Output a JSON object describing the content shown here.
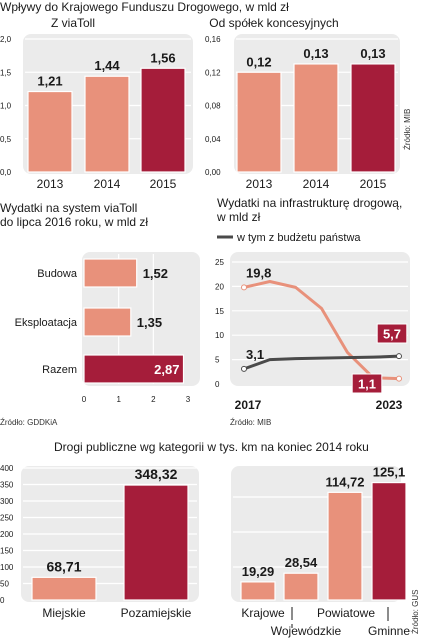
{
  "colors": {
    "panel": "#ebebeb",
    "grid": "#ffffff",
    "bar_light": "#e8917b",
    "bar_dark": "#a51d3a",
    "line_dark": "#4a4a4a",
    "text": "#1a1a1a"
  },
  "header": {
    "title": "Wpływy do Krajowego Funduszu Drogowego, w mld zł"
  },
  "section2": {
    "title_line1": "Wydatki na system viaToll",
    "title_line2": "do lipca 2016 roku, w mld zł"
  },
  "section3": {
    "title_line1": "Wydatki na infrastrukturę drogową,",
    "title_line2": "w mld zł"
  },
  "section4": {
    "title": "Drogi publiczne wg kategorii w tys. km na koniec 2014 roku"
  },
  "sources": {
    "top": "Źródło: MIB",
    "viatoll": "Źródło: GDDKiA",
    "infra": "Źródło: MIB",
    "roads": "Źródło: GUS"
  },
  "chart_data": [
    {
      "type": "bar",
      "title": "Z viaToll",
      "categories": [
        "2013",
        "2014",
        "2015"
      ],
      "values": [
        1.21,
        1.44,
        1.56
      ],
      "labels": [
        "1,21",
        "1,44",
        "1,56"
      ],
      "ylim": [
        0,
        2.0
      ],
      "yticks": [
        0,
        0.5,
        1.0,
        1.5,
        2.0
      ],
      "ytick_labels": [
        "0,0",
        "0,5",
        "1,0",
        "1,5",
        "2,0"
      ],
      "highlight_last": true
    },
    {
      "type": "bar",
      "title": "Od spółek koncesyjnych",
      "categories": [
        "2013",
        "2014",
        "2015"
      ],
      "values": [
        0.12,
        0.13,
        0.13
      ],
      "labels": [
        "0,12",
        "0,13",
        "0,13"
      ],
      "ylim": [
        0,
        0.16
      ],
      "yticks": [
        0,
        0.04,
        0.08,
        0.12,
        0.16
      ],
      "ytick_labels": [
        "0,00",
        "0,04",
        "0,08",
        "0,12",
        "0,16"
      ],
      "highlight_last": true
    },
    {
      "type": "bar",
      "orientation": "horizontal",
      "categories": [
        "Budowa",
        "Eksploatacja",
        "Razem"
      ],
      "values": [
        1.52,
        1.35,
        2.87
      ],
      "labels": [
        "1,52",
        "1,35",
        "2,87"
      ],
      "xlim": [
        0,
        3
      ],
      "xticks": [
        0,
        1,
        2,
        3
      ],
      "xtick_labels": [
        "0",
        "1",
        "2",
        "3"
      ],
      "highlight_last": true
    },
    {
      "type": "line",
      "x": [
        2017,
        2023
      ],
      "xtick_labels": [
        "2017",
        "2023"
      ],
      "ylim": [
        0,
        25
      ],
      "yticks": [
        0,
        5,
        10,
        15,
        20,
        25
      ],
      "ytick_labels": [
        "0",
        "5",
        "10",
        "15",
        "20",
        "25"
      ],
      "legend_label": "w tym z budżetu państwa",
      "series": [
        {
          "role": "total",
          "x": [
            2017,
            2018,
            2019,
            2020,
            2021,
            2022,
            2023
          ],
          "values": [
            19.8,
            21.0,
            19.8,
            15.5,
            6.5,
            1.3,
            1.1
          ],
          "start_label": "19,8",
          "end_label": "1,1"
        },
        {
          "role": "budget",
          "name": "w tym z budżetu państwa",
          "x": [
            2017,
            2018,
            2019,
            2020,
            2021,
            2022,
            2023
          ],
          "values": [
            3.1,
            5.0,
            5.2,
            5.3,
            5.4,
            5.5,
            5.7
          ],
          "start_label": "3,1",
          "end_label": "5,7"
        }
      ]
    },
    {
      "type": "bar",
      "categories": [
        "Miejskie",
        "Pozamiejskie"
      ],
      "values": [
        68.71,
        348.32
      ],
      "labels": [
        "68,71",
        "348,32"
      ],
      "ylim": [
        0,
        400
      ],
      "yticks": [
        0,
        50,
        100,
        150,
        200,
        250,
        300,
        350,
        400
      ],
      "ytick_labels": [
        "0",
        "50",
        "100",
        "150",
        "200",
        "250",
        "300",
        "350",
        "400"
      ],
      "highlight_last": true
    },
    {
      "type": "bar",
      "categories": [
        "Krajowe",
        "Wojewódzkie",
        "Powiatowe",
        "Gminne"
      ],
      "values": [
        19.29,
        28.54,
        114.72,
        125.1
      ],
      "labels": [
        "19,29",
        "28,54",
        "114,72",
        "125,1"
      ],
      "ylim": [
        0,
        130
      ],
      "highlight_last": true
    }
  ]
}
